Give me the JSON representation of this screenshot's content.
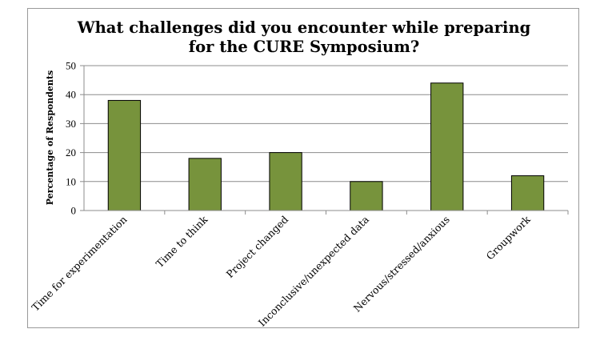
{
  "chart_data": {
    "type": "bar",
    "title_lines": [
      "What challenges did you encounter while preparing",
      "for the CURE Symposium?"
    ],
    "xlabel": "",
    "ylabel": "Percentage of Respondents",
    "ylim": [
      0,
      50
    ],
    "yticks": [
      0,
      10,
      20,
      30,
      40,
      50
    ],
    "grid": true,
    "legend": "none",
    "categories": [
      "Time for experimentation",
      "Time to think",
      "Project changed",
      "Inconclusive/unexpected data",
      "Nervous/stressed/anxious",
      "Groupwork"
    ],
    "values": [
      38,
      18,
      20,
      10,
      44,
      12
    ],
    "bar_color": "#77933c",
    "bar_edge_color": "#000000"
  }
}
